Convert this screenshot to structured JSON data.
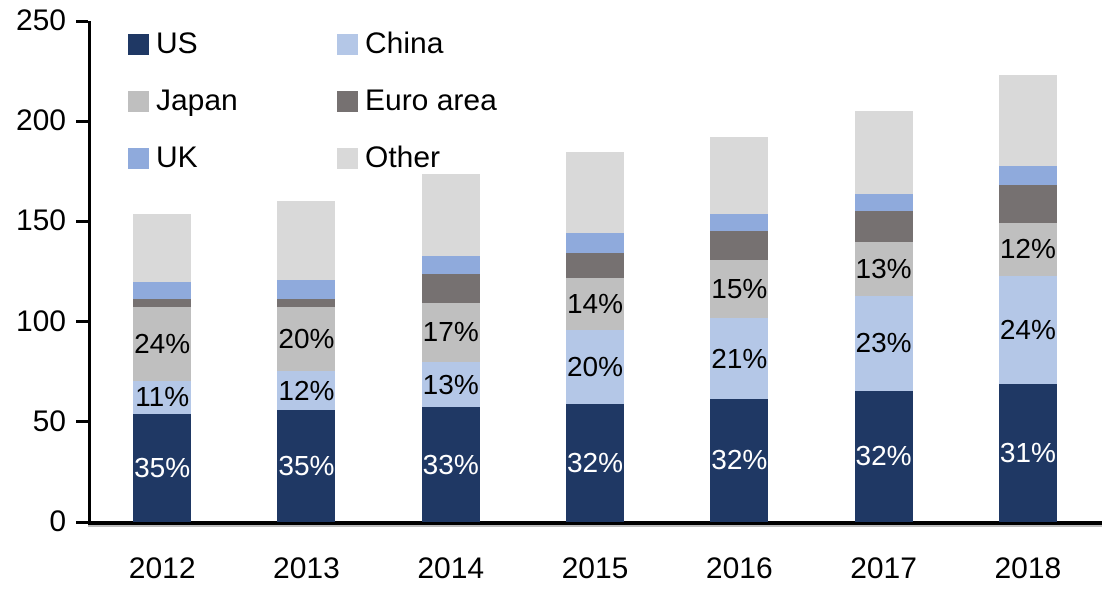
{
  "chart_data": {
    "type": "bar",
    "stacked": true,
    "title": "",
    "xlabel": "",
    "ylabel": "",
    "categories": [
      "2012",
      "2013",
      "2014",
      "2015",
      "2016",
      "2017",
      "2018"
    ],
    "series": [
      {
        "name": "US",
        "color": "#1f3864",
        "label_color": "#ffffff",
        "values": [
          53.7,
          56.0,
          57.3,
          59.0,
          61.4,
          65.6,
          69.1
        ],
        "labels": [
          "35%",
          "35%",
          "33%",
          "32%",
          "32%",
          "32%",
          "31%"
        ]
      },
      {
        "name": "China",
        "color": "#b4c7e7",
        "label_color": "#000000",
        "values": [
          16.9,
          19.2,
          22.6,
          36.9,
          40.3,
          47.2,
          53.5
        ],
        "labels": [
          "11%",
          "12%",
          "13%",
          "20%",
          "21%",
          "23%",
          "24%"
        ]
      },
      {
        "name": "Japan",
        "color": "#bfbfbf",
        "label_color": "#000000",
        "values": [
          36.8,
          32.0,
          29.5,
          25.8,
          28.8,
          26.7,
          26.8
        ],
        "labels": [
          "24%",
          "20%",
          "17%",
          "14%",
          "15%",
          "13%",
          "12%"
        ]
      },
      {
        "name": "Euro area",
        "color": "#767171",
        "label_color": null,
        "values": [
          4.0,
          4.0,
          14.5,
          12.5,
          14.5,
          15.5,
          19.0
        ],
        "labels": null
      },
      {
        "name": "UK",
        "color": "#8faadc",
        "label_color": null,
        "values": [
          8.5,
          9.5,
          9.0,
          10.0,
          8.5,
          8.5,
          9.0
        ],
        "labels": null
      },
      {
        "name": "Other",
        "color": "#d9d9d9",
        "label_color": null,
        "values": [
          33.6,
          39.3,
          40.6,
          40.3,
          38.5,
          41.5,
          45.6
        ],
        "labels": null
      }
    ],
    "totals": [
      153.5,
      160.0,
      173.5,
      184.5,
      192.0,
      205.0,
      223.0
    ],
    "y_axis": {
      "min": 0,
      "max": 250,
      "tick_step": 50,
      "tick_labels": [
        "0",
        "50",
        "100",
        "150",
        "200",
        "250"
      ]
    },
    "legend": {
      "position": "top-left",
      "columns": 2,
      "items": [
        "US",
        "China",
        "Japan",
        "Euro area",
        "UK",
        "Other"
      ]
    },
    "grid": false,
    "axis_color": "#000000",
    "background": "#ffffff"
  }
}
